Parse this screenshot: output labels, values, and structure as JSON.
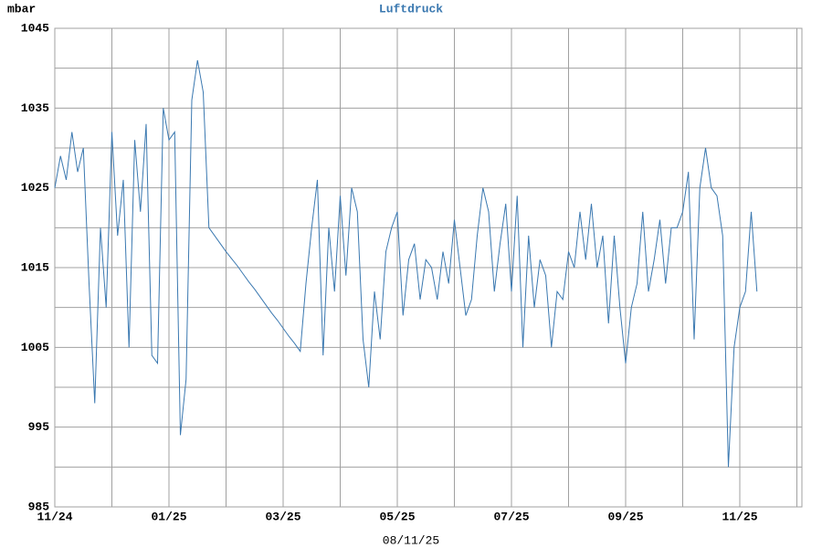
{
  "chart_data": {
    "type": "line",
    "title": "Luftdruck",
    "y_unit": "mbar",
    "footer": "08/11/25",
    "color": "#3a78b0",
    "grid": true,
    "ylim": [
      985,
      1045
    ],
    "yticks": [
      985,
      995,
      1005,
      1015,
      1025,
      1035,
      1045
    ],
    "categories": [
      "11/24",
      null,
      null,
      null,
      null,
      null,
      null,
      null,
      null,
      null,
      null,
      null,
      null,
      null,
      null,
      null,
      null,
      null,
      null,
      null,
      "01/25",
      null,
      null,
      null,
      null,
      null,
      null,
      null,
      null,
      null,
      null,
      null,
      null,
      null,
      null,
      null,
      null,
      null,
      null,
      null,
      "03/25",
      null,
      null,
      null,
      null,
      null,
      null,
      null,
      null,
      null,
      null,
      null,
      null,
      null,
      null,
      null,
      null,
      null,
      null,
      null,
      "05/25",
      null,
      null,
      null,
      null,
      null,
      null,
      null,
      null,
      null,
      null,
      null,
      null,
      null,
      null,
      null,
      null,
      null,
      null,
      null,
      "07/25",
      null,
      null,
      null,
      null,
      null,
      null,
      null,
      null,
      null,
      null,
      null,
      null,
      null,
      null,
      null,
      null,
      null,
      null,
      null,
      "09/25",
      null,
      null,
      null,
      null,
      null,
      null,
      null,
      null,
      null,
      null,
      null,
      null,
      null,
      null,
      null,
      null,
      null,
      null,
      null,
      "11/25",
      null,
      null,
      null
    ],
    "values": [
      1025,
      1029,
      1026,
      1032,
      1027,
      1030,
      1013,
      998,
      1020,
      1010,
      1032,
      1019,
      1026,
      1005,
      1031,
      1022,
      1033,
      1004,
      1003,
      1035,
      1031,
      1032,
      994,
      1001,
      1036,
      1041,
      1037,
      1020,
      1019,
      1018,
      1017,
      1016.1,
      1015.2,
      1014.2,
      1013.2,
      1012.3,
      1011.3,
      1010.3,
      1009.3,
      1008.4,
      1007.4,
      1006.4,
      1005.5,
      1004.5,
      1013,
      1020,
      1026,
      1004,
      1020,
      1012,
      1024,
      1014,
      1025,
      1022,
      1006,
      1000,
      1012,
      1006,
      1017,
      1020,
      1022,
      1009,
      1016,
      1018,
      1011,
      1016,
      1015,
      1011,
      1017,
      1013,
      1021,
      1015,
      1009,
      1011,
      1019,
      1025,
      1022,
      1012,
      1018,
      1023,
      1012,
      1024,
      1005,
      1019,
      1010,
      1016,
      1014,
      1005,
      1012,
      1011,
      1017,
      1015,
      1022,
      1016,
      1023,
      1015,
      1019,
      1008,
      1019,
      1010,
      1003,
      1010,
      1013,
      1022,
      1012,
      1016,
      1021,
      1013,
      1020,
      1020,
      1022,
      1027,
      1006,
      1025,
      1030,
      1025,
      1024,
      1019,
      990,
      1005,
      1010,
      1012,
      1022,
      1012
    ]
  }
}
